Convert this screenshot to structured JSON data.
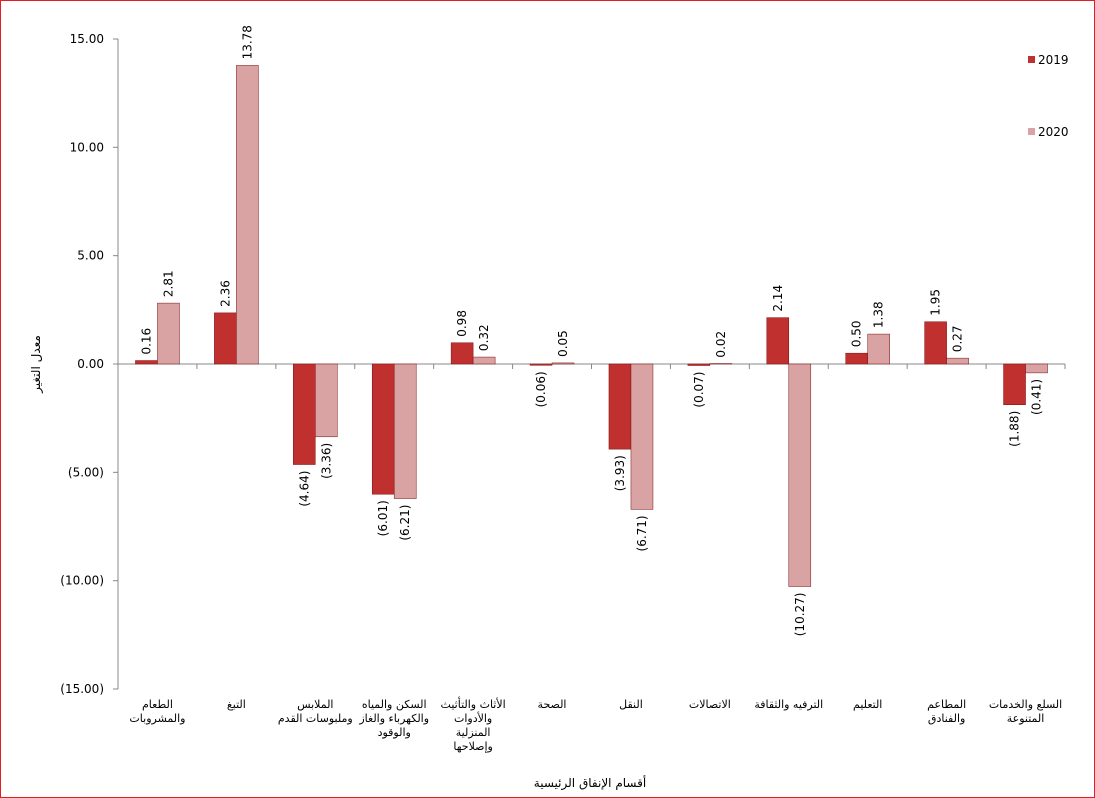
{
  "chart_data": {
    "type": "bar",
    "y_label": "معدل التغير",
    "x_label": "أقسام الإنفاق الرئيسية",
    "categories": [
      "الطعام والمشروبات",
      "التبغ",
      "الملابس وملبوسات القدم",
      "السكن والمياه والكهرباء والغاز والوقود",
      "الأثاث والتأثيث والأدوات المنزلية وإصلاحها",
      "الصحة",
      "النقل",
      "الاتصالات",
      "الترفيه والثقافة",
      "التعليم",
      "المطاعم والفنادق",
      "السلع والخدمات المتنوعة"
    ],
    "series": [
      {
        "name": "2019",
        "color": "#c0302e",
        "values": [
          0.16,
          2.36,
          -4.64,
          -6.01,
          0.98,
          -0.06,
          -3.93,
          -0.07,
          2.14,
          0.5,
          1.95,
          -1.88
        ],
        "value_labels": [
          "0.16",
          "2.36",
          "(4.64)",
          "(6.01)",
          "0.98",
          "(0.06)",
          "(3.93)",
          "(0.07)",
          "2.14",
          "0.50",
          "1.95",
          "(1.88)"
        ]
      },
      {
        "name": "2020",
        "color": "#d9a3a3",
        "values": [
          2.81,
          13.78,
          -3.36,
          -6.21,
          0.32,
          0.05,
          -6.71,
          0.02,
          -10.27,
          1.38,
          0.27,
          -0.41
        ],
        "value_labels": [
          "2.81",
          "13.78",
          "(3.36)",
          "(6.21)",
          "0.32",
          "0.05",
          "(6.71)",
          "0.02",
          "(10.27)",
          "1.38",
          "0.27",
          "(0.41)"
        ]
      }
    ],
    "ylim": [
      -15,
      15
    ],
    "yticks": [
      {
        "value": -15,
        "label": "(15.00)"
      },
      {
        "value": -10,
        "label": "(10.00)"
      },
      {
        "value": -5,
        "label": "(5.00)"
      },
      {
        "value": 0,
        "label": "0.00"
      },
      {
        "value": 5,
        "label": "5.00"
      },
      {
        "value": 10,
        "label": "10.00"
      },
      {
        "value": 15,
        "label": "15.00"
      }
    ],
    "legend": "top-right"
  }
}
